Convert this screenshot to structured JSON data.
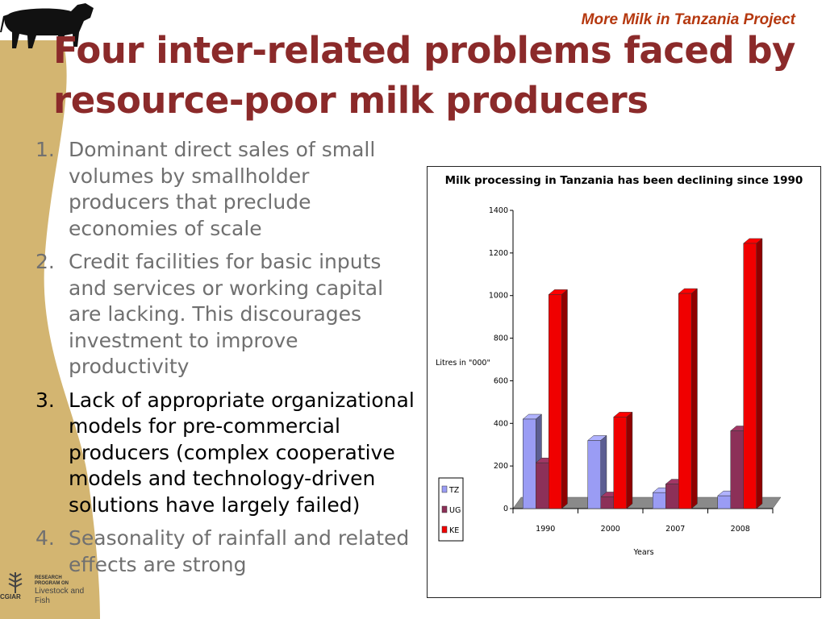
{
  "header": {
    "project_name": "More Milk in Tanzania Project",
    "title": "Four inter-related problems faced by resource-poor milk producers"
  },
  "points": [
    {
      "number": "1.",
      "text": "Dominant direct sales of small volumes by smallholder producers that preclude economies of scale",
      "highlighted": false
    },
    {
      "number": "2.",
      "text": "Credit facilities for basic inputs and services or working capital are lacking. This discourages investment to improve productivity",
      "highlighted": false
    },
    {
      "number": "3.",
      "text": "Lack of appropriate organizational models for pre-commercial producers (complex cooperative models and technology-driven solutions have largely failed)",
      "highlighted": true
    },
    {
      "number": "4.",
      "text": "Seasonality of rainfall  and related effects are strong",
      "highlighted": false
    }
  ],
  "logo": {
    "line1": "RESEARCH",
    "line2": "PROGRAM ON",
    "line3": "Livestock and Fish",
    "org": "CGIAR"
  },
  "icons": {
    "cow": "cow-silhouette-icon",
    "logo": "wheat-icon"
  },
  "colors": {
    "title": "#8b2a2a",
    "project_name": "#b5380f",
    "band": "#d3b571",
    "TZ": "#9a9cf4",
    "UG": "#8c3058",
    "KE": "#f00000"
  },
  "chart_data": {
    "type": "bar",
    "title": "Milk processing in Tanzania has been declining since 1990",
    "xlabel": "Years",
    "ylabel": "Litres in \"000\"",
    "categories": [
      "1990",
      "2000",
      "2007",
      "2008"
    ],
    "series": [
      {
        "name": "TZ",
        "values": [
          420,
          320,
          75,
          60
        ]
      },
      {
        "name": "UG",
        "values": [
          215,
          55,
          115,
          365
        ]
      },
      {
        "name": "KE",
        "values": [
          1005,
          430,
          1010,
          1245
        ]
      }
    ],
    "ylim": [
      0,
      1400
    ],
    "yticks": [
      0,
      200,
      400,
      600,
      800,
      1000,
      1200,
      1400
    ],
    "grid": false,
    "three_d": true,
    "legend": "left"
  }
}
